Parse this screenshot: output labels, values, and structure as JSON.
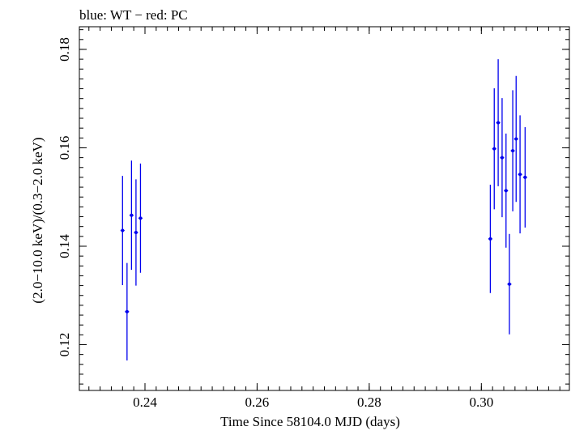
{
  "chart_data": {
    "type": "scatter",
    "title": "blue: WT − red: PC",
    "xlabel": "Time Since 58104.0 MJD (days)",
    "ylabel": "(2.0−10.0 keV)/(0.3−2.0 keV)",
    "xlim": [
      0.2283,
      0.3157
    ],
    "ylim": [
      0.1107,
      0.1846
    ],
    "x_ticks": [
      {
        "value": 0.24,
        "label": "0.24"
      },
      {
        "value": 0.26,
        "label": "0.26"
      },
      {
        "value": 0.28,
        "label": "0.28"
      },
      {
        "value": 0.3,
        "label": "0.30"
      }
    ],
    "y_ticks": [
      {
        "value": 0.12,
        "label": "0.12"
      },
      {
        "value": 0.14,
        "label": "0.14"
      },
      {
        "value": 0.16,
        "label": "0.16"
      },
      {
        "value": 0.18,
        "label": "0.18"
      }
    ],
    "x_minor_step": 0.002,
    "y_minor_step": 0.002,
    "series": [
      {
        "name": "WT",
        "color": "#0000ee",
        "points": [
          {
            "x": 0.236,
            "y": 0.1432,
            "yerr": 0.0111
          },
          {
            "x": 0.2368,
            "y": 0.1267,
            "yerr": 0.0099
          },
          {
            "x": 0.2376,
            "y": 0.1463,
            "yerr": 0.0111
          },
          {
            "x": 0.2384,
            "y": 0.1428,
            "yerr": 0.0108
          },
          {
            "x": 0.2392,
            "y": 0.1457,
            "yerr": 0.0111
          },
          {
            "x": 0.3016,
            "y": 0.1415,
            "yerr": 0.011
          },
          {
            "x": 0.3023,
            "y": 0.1598,
            "yerr": 0.0123
          },
          {
            "x": 0.303,
            "y": 0.1651,
            "yerr": 0.0129
          },
          {
            "x": 0.3037,
            "y": 0.158,
            "yerr": 0.0121
          },
          {
            "x": 0.3044,
            "y": 0.1513,
            "yerr": 0.0116
          },
          {
            "x": 0.305,
            "y": 0.1323,
            "yerr": 0.0102
          },
          {
            "x": 0.3056,
            "y": 0.1594,
            "yerr": 0.0123
          },
          {
            "x": 0.3062,
            "y": 0.1618,
            "yerr": 0.0128
          },
          {
            "x": 0.3069,
            "y": 0.1546,
            "yerr": 0.012
          },
          {
            "x": 0.3078,
            "y": 0.154,
            "yerr": 0.0102
          }
        ]
      }
    ]
  }
}
